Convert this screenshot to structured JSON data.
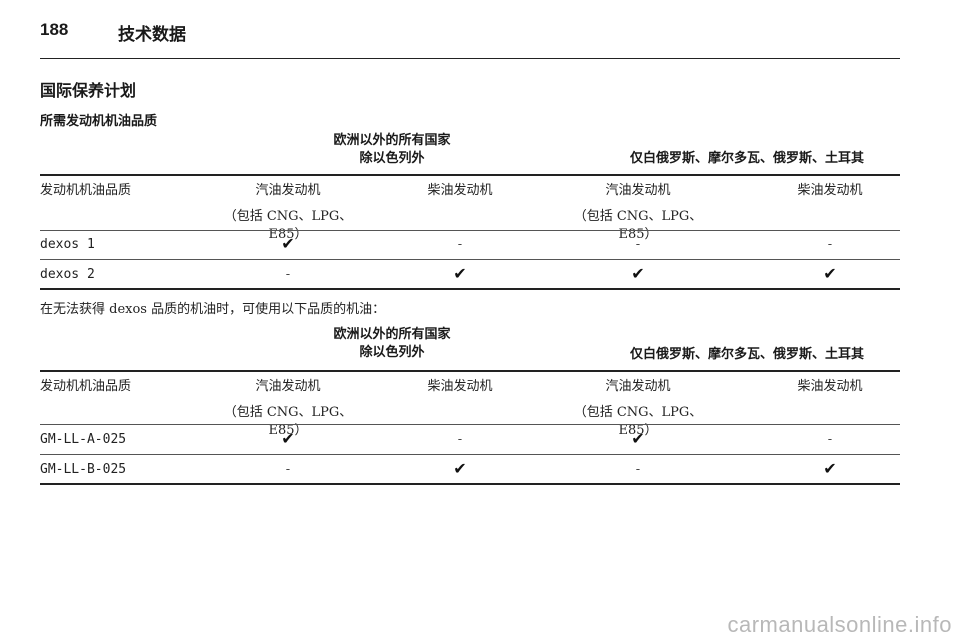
{
  "header": {
    "page_number": "188",
    "chapter": "技术数据"
  },
  "section_title": "国际保养计划",
  "subsection_title": "所需发动机机油品质",
  "group_a": {
    "line1": "欧洲以外的所有国家",
    "line2": "除以色列外"
  },
  "group_b": "仅白俄罗斯、摩尔多瓦、俄罗斯、土耳其",
  "columns": {
    "quality": "发动机机油品质",
    "petrol": "汽油发动机",
    "petrol_note": "（包括 CNG、LPG、E85）",
    "diesel": "柴油发动机"
  },
  "check_symbol": "✔",
  "dash_symbol": "-",
  "table1": [
    {
      "name": "dexos 1",
      "cells": [
        "✔",
        "-",
        "-",
        "-"
      ]
    },
    {
      "name": "dexos 2",
      "cells": [
        "-",
        "✔",
        "✔",
        "✔"
      ]
    }
  ],
  "note": "在无法获得 dexos 品质的机油时，可使用以下品质的机油：",
  "table2": [
    {
      "name": "GM-LL-A-025",
      "cells": [
        "✔",
        "-",
        "✔",
        "-"
      ]
    },
    {
      "name": "GM-LL-B-025",
      "cells": [
        "-",
        "✔",
        "-",
        "✔"
      ]
    }
  ],
  "watermark": "carmanualsonline.info"
}
